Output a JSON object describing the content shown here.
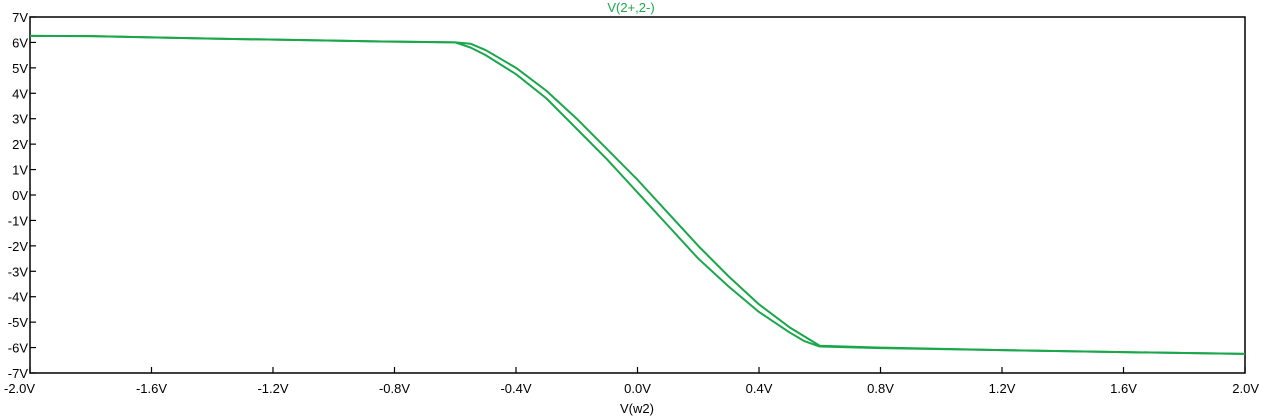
{
  "chart_data": {
    "type": "line",
    "title": "V(2+,2-)",
    "xlabel": "V(w2)",
    "ylabel": "",
    "xlim": [
      -2.0,
      2.0
    ],
    "ylim": [
      -7,
      7
    ],
    "grid": false,
    "x_ticks": [
      -2.0,
      -1.6,
      -1.2,
      -0.8,
      -0.4,
      0.0,
      0.4,
      0.8,
      1.2,
      1.6,
      2.0
    ],
    "x_tick_labels": [
      "-2.0V",
      "-1.6V",
      "-1.2V",
      "-0.8V",
      "-0.4V",
      "0.0V",
      "0.4V",
      "0.8V",
      "1.2V",
      "1.6V",
      "2.0V"
    ],
    "y_ticks": [
      7,
      6,
      5,
      4,
      3,
      2,
      1,
      0,
      -1,
      -2,
      -3,
      -4,
      -5,
      -6,
      -7
    ],
    "y_tick_labels": [
      "7V",
      "6V",
      "5V",
      "4V",
      "3V",
      "2V",
      "1V",
      "0V",
      "-1V",
      "-2V",
      "-3V",
      "-4V",
      "-5V",
      "-6V",
      "-7V"
    ],
    "series": [
      {
        "name": "V(2+,2-)",
        "color": "#1aa64a",
        "x": [
          -2.0,
          -1.8,
          -1.4,
          -1.0,
          -0.8,
          -0.6,
          -0.55,
          -0.5,
          -0.4,
          -0.3,
          -0.2,
          -0.1,
          0.0,
          0.1,
          0.2,
          0.3,
          0.4,
          0.5,
          0.6,
          0.8,
          1.2,
          1.6,
          2.0
        ],
        "y": [
          6.26,
          6.25,
          6.15,
          6.07,
          6.03,
          6.0,
          5.95,
          5.7,
          5.0,
          4.1,
          3.0,
          1.8,
          0.6,
          -0.7,
          -2.0,
          -3.2,
          -4.3,
          -5.2,
          -5.93,
          -6.0,
          -6.1,
          -6.18,
          -6.25
        ]
      },
      {
        "name": "V(2+,2-)",
        "color": "#1aa64a",
        "x": [
          -2.0,
          -1.8,
          -1.4,
          -1.0,
          -0.8,
          -0.6,
          -0.55,
          -0.5,
          -0.4,
          -0.3,
          -0.2,
          -0.1,
          0.0,
          0.1,
          0.2,
          0.3,
          0.4,
          0.5,
          0.55,
          0.6,
          0.8,
          1.2,
          1.6,
          2.0
        ],
        "y": [
          6.26,
          6.25,
          6.15,
          6.07,
          6.03,
          6.0,
          5.8,
          5.5,
          4.75,
          3.8,
          2.6,
          1.4,
          0.1,
          -1.2,
          -2.5,
          -3.6,
          -4.6,
          -5.4,
          -5.75,
          -5.96,
          -6.02,
          -6.1,
          -6.18,
          -6.25
        ]
      }
    ]
  }
}
